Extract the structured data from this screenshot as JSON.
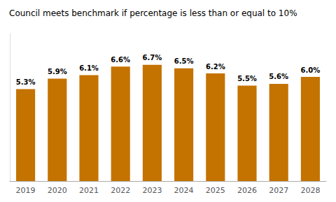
{
  "chart_data": {
    "type": "bar",
    "title": "Council meets benchmark if percentage is less than or equal to 10%",
    "categories": [
      "2019",
      "2020",
      "2021",
      "2022",
      "2023",
      "2024",
      "2025",
      "2026",
      "2027",
      "2028"
    ],
    "values": [
      5.3,
      5.9,
      6.1,
      6.6,
      6.7,
      6.5,
      6.2,
      5.5,
      5.6,
      6.0
    ],
    "value_labels": [
      "5.3%",
      "5.9%",
      "6.1%",
      "6.6%",
      "6.7%",
      "6.5%",
      "6.2%",
      "5.5%",
      "5.6%",
      "6.0%"
    ],
    "data_labels": true,
    "color": "#C47200",
    "ylim": [
      0,
      8.5
    ],
    "tick_labels": "x",
    "grid": false
  }
}
